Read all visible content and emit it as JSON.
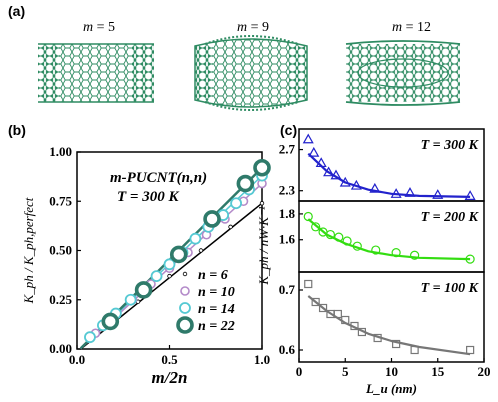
{
  "panel_labels": {
    "a": "(a)",
    "b": "(b)",
    "c": "(c)"
  },
  "structures": [
    {
      "label_var": "m",
      "label_val": " = 5"
    },
    {
      "label_var": "m",
      "label_val": " = 9"
    },
    {
      "label_var": "m",
      "label_val": " = 12"
    }
  ],
  "colors": {
    "tube": "#2e8b62",
    "s6": "#000000",
    "s10": "#b38ac9",
    "s14": "#55c9d3",
    "s22": "#2f7a6a",
    "c300": "#2222cc",
    "c200": "#33dd11",
    "c100": "#777777"
  },
  "chart_data": [
    {
      "type": "scatter",
      "title": "m-PUCNT(n,n)",
      "annotation": "T = 300 K",
      "xlabel": "m/2n",
      "ylabel": "K_ph / K_ph,perfect",
      "xlim": [
        0,
        1
      ],
      "ylim": [
        0,
        1
      ],
      "xticks": [
        "0.0",
        "0.5",
        "1.0"
      ],
      "yticks": [
        "0.00",
        "0.25",
        "0.50",
        "0.75",
        "1.00"
      ],
      "legend_position": "bottom-right",
      "series": [
        {
          "name": "n = 6",
          "marker": "small-circle",
          "x": [
            0.17,
            0.33,
            0.5,
            0.67,
            0.83,
            1.0
          ],
          "y": [
            0.12,
            0.24,
            0.37,
            0.5,
            0.62,
            0.74
          ]
        },
        {
          "name": "n = 10",
          "marker": "circle",
          "x": [
            0.1,
            0.2,
            0.3,
            0.4,
            0.5,
            0.6,
            0.7,
            0.8,
            0.9,
            1.0
          ],
          "y": [
            0.08,
            0.16,
            0.25,
            0.33,
            0.41,
            0.49,
            0.58,
            0.66,
            0.75,
            0.84
          ]
        },
        {
          "name": "n = 14",
          "marker": "circle",
          "x": [
            0.07,
            0.14,
            0.21,
            0.29,
            0.36,
            0.43,
            0.5,
            0.57,
            0.64,
            0.71,
            0.79,
            0.86,
            0.93,
            1.0
          ],
          "y": [
            0.06,
            0.12,
            0.18,
            0.25,
            0.31,
            0.37,
            0.43,
            0.49,
            0.56,
            0.62,
            0.68,
            0.74,
            0.81,
            0.88
          ]
        },
        {
          "name": "n = 22",
          "marker": "thick-circle",
          "x": [
            0.18,
            0.36,
            0.55,
            0.73,
            0.91,
            1.0
          ],
          "y": [
            0.14,
            0.3,
            0.48,
            0.66,
            0.84,
            0.92
          ]
        }
      ]
    },
    {
      "type": "scatter",
      "xlabel": "L_u (nm)",
      "ylabel": "K_ph / nW·K⁻¹",
      "xlim": [
        0,
        20
      ],
      "xticks": [
        "0",
        "5",
        "10",
        "15",
        "20"
      ],
      "panels": [
        {
          "label": "T = 300 K",
          "marker": "triangle",
          "ylim": [
            2.2,
            2.9
          ],
          "yticks": [
            "2.3",
            "2.7"
          ],
          "x": [
            1.0,
            1.6,
            2.4,
            3.2,
            4.0,
            5.0,
            6.2,
            8.2,
            10.5,
            12.0,
            15.0,
            18.5
          ],
          "y": [
            2.8,
            2.67,
            2.57,
            2.48,
            2.45,
            2.38,
            2.35,
            2.32,
            2.27,
            2.28,
            2.26,
            2.25
          ],
          "fit_x": [
            1.0,
            3,
            5,
            7.5,
            10,
            13,
            18.5
          ],
          "fit_y": [
            2.66,
            2.49,
            2.38,
            2.31,
            2.27,
            2.25,
            2.24
          ]
        },
        {
          "label": "T = 200 K",
          "marker": "circle",
          "ylim": [
            1.35,
            1.9
          ],
          "yticks": [
            "1.6",
            "1.8"
          ],
          "x": [
            1.0,
            1.8,
            2.6,
            3.4,
            4.3,
            5.2,
            6.3,
            8.3,
            10.5,
            12.5,
            18.5
          ],
          "y": [
            1.78,
            1.7,
            1.66,
            1.64,
            1.62,
            1.59,
            1.55,
            1.52,
            1.5,
            1.48,
            1.45
          ],
          "fit_x": [
            1.0,
            3,
            5,
            7.5,
            10,
            13,
            18.5
          ],
          "fit_y": [
            1.76,
            1.64,
            1.57,
            1.51,
            1.48,
            1.46,
            1.45
          ]
        },
        {
          "label": "T = 100 K",
          "marker": "square",
          "ylim": [
            0.58,
            0.73
          ],
          "yticks": [
            "0.6",
            "0.7"
          ],
          "x": [
            1.0,
            1.8,
            2.6,
            3.4,
            4.2,
            5.0,
            6.0,
            6.8,
            8.5,
            10.5,
            12.5,
            18.5
          ],
          "y": [
            0.71,
            0.68,
            0.67,
            0.66,
            0.66,
            0.65,
            0.64,
            0.63,
            0.62,
            0.61,
            0.6,
            0.6
          ],
          "fit_x": [
            1.0,
            3,
            5,
            7.5,
            10,
            13,
            18.5
          ],
          "fit_y": [
            0.69,
            0.665,
            0.645,
            0.627,
            0.615,
            0.605,
            0.593
          ]
        }
      ]
    }
  ]
}
